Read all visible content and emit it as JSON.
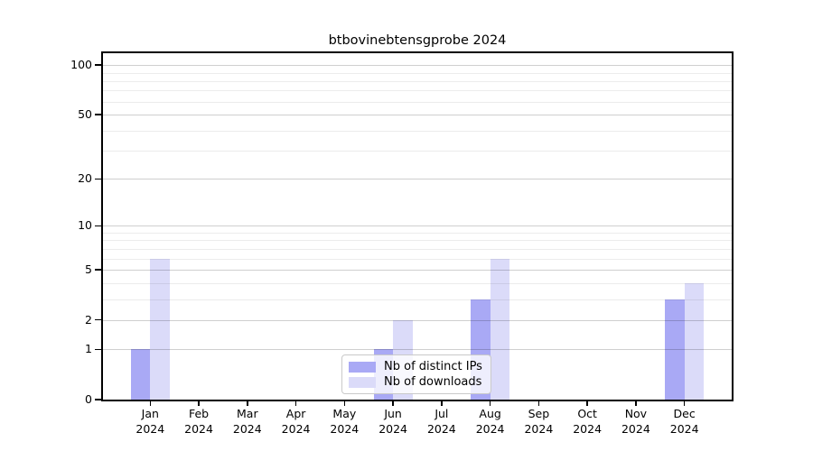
{
  "chart_data": {
    "type": "bar",
    "title": "btbovinebtensgprobe 2024",
    "xlabel": "",
    "ylabel": "",
    "y_scale": "log1p (position proportional to log10(1+value))",
    "categories": [
      "Jan 2024",
      "Feb 2024",
      "Mar 2024",
      "Apr 2024",
      "May 2024",
      "Jun 2024",
      "Jul 2024",
      "Aug 2024",
      "Sep 2024",
      "Oct 2024",
      "Nov 2024",
      "Dec 2024"
    ],
    "series": [
      {
        "name": "Nb of distinct IPs",
        "color": "#a9a9f5",
        "values": [
          1,
          0,
          0,
          0,
          0,
          1,
          0,
          3,
          0,
          0,
          0,
          3
        ]
      },
      {
        "name": "Nb of downloads",
        "color": "#dbdbf9",
        "values": [
          6,
          0,
          0,
          0,
          0,
          2,
          0,
          6,
          0,
          0,
          0,
          4
        ]
      }
    ],
    "yticks": [
      0,
      1,
      2,
      5,
      10,
      20,
      50,
      100
    ],
    "minor_gridline_values": [
      3,
      4,
      6,
      7,
      8,
      9,
      30,
      40,
      60,
      70,
      80,
      90
    ],
    "ylim": [
      0,
      117
    ],
    "grid": true,
    "legend_position": "lower center"
  },
  "colors": {
    "background": "#ffffff",
    "axis": "#000000",
    "major_grid": "#cfcfcf",
    "minor_grid": "#ececec",
    "legend_border": "#c9c9c9"
  }
}
